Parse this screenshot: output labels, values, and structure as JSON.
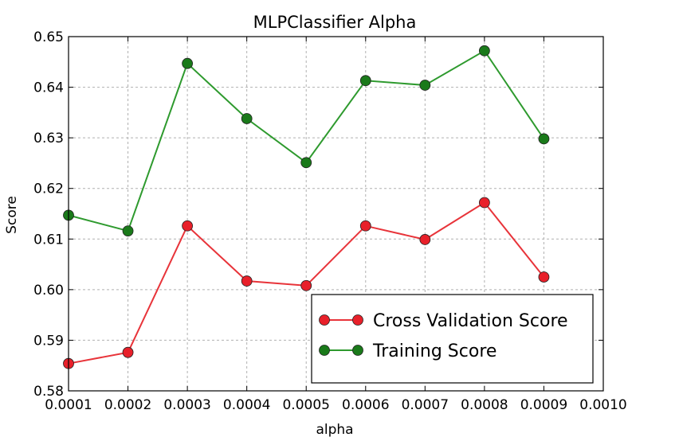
{
  "chart_data": {
    "type": "line",
    "title": "MLPClassifier Alpha",
    "xlabel": "alpha",
    "ylabel": "Score",
    "xlim": [
      0.0001,
      0.001
    ],
    "ylim": [
      0.58,
      0.65
    ],
    "grid": true,
    "legend_position": "lower right",
    "x": [
      0.0001,
      0.0002,
      0.0003,
      0.0004,
      0.0005,
      0.0006,
      0.0007,
      0.0008,
      0.0009
    ],
    "x_tick_labels": [
      "0.0001",
      "0.0002",
      "0.0003",
      "0.0004",
      "0.0005",
      "0.0006",
      "0.0007",
      "0.0008",
      "0.0009",
      "0.0010"
    ],
    "y_tick_labels": [
      "0.58",
      "0.59",
      "0.60",
      "0.61",
      "0.62",
      "0.63",
      "0.64",
      "0.65"
    ],
    "series": [
      {
        "name": "Cross Validation Score",
        "color": "#e8343a",
        "marker_color": "#e8202a",
        "values": [
          0.5854,
          0.5876,
          0.6126,
          0.6017,
          0.6008,
          0.6126,
          0.6099,
          0.6172,
          0.6025
        ]
      },
      {
        "name": "Training Score",
        "color": "#2e9a2e",
        "marker_color": "#1a7a1a",
        "values": [
          0.6147,
          0.6116,
          0.6447,
          0.6338,
          0.6251,
          0.6413,
          0.6404,
          0.6472,
          0.6298
        ]
      }
    ]
  }
}
